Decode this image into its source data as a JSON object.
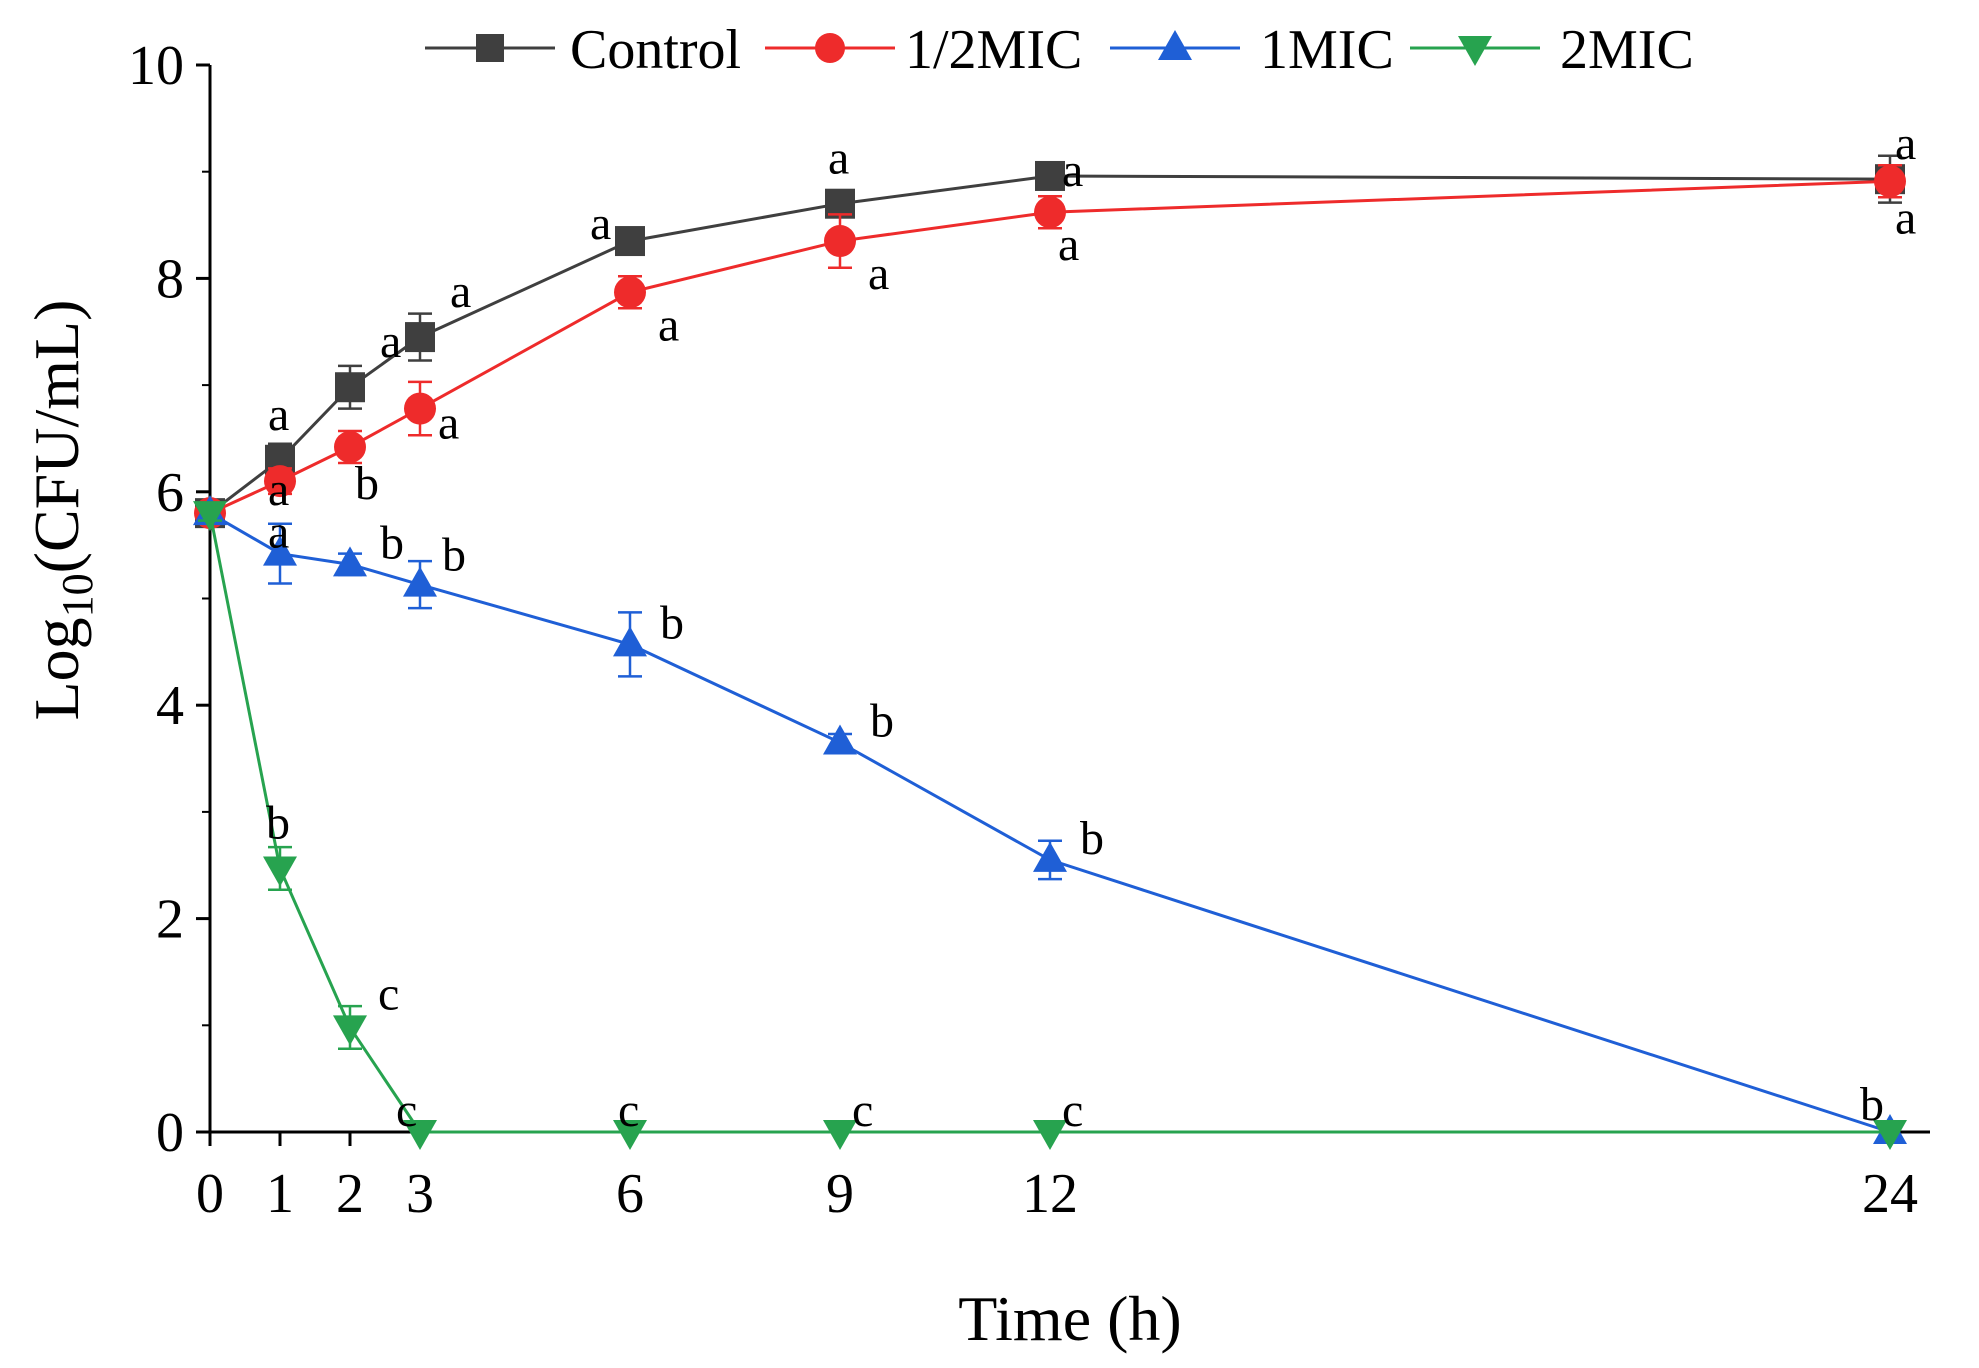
{
  "chart_data": {
    "type": "line",
    "xlabel": "Time (h)",
    "ylabel": {
      "base": "Log",
      "subscript": "10",
      "rest": "(CFU/mL)"
    },
    "xlim": [
      0,
      24
    ],
    "ylim": [
      0,
      10
    ],
    "x_ticks": [
      0,
      1,
      2,
      3,
      6,
      9,
      12,
      24
    ],
    "y_ticks": [
      0,
      2,
      4,
      6,
      8,
      10
    ],
    "legend_position": "top",
    "series": [
      {
        "name": "Control",
        "color": "#3f3f3f",
        "marker": "square",
        "x": [
          0,
          1,
          2,
          3,
          6,
          9,
          12,
          24
        ],
        "values": [
          5.8,
          6.3,
          6.98,
          7.45,
          8.35,
          8.7,
          8.96,
          8.93
        ],
        "errors": [
          0.07,
          0.15,
          0.2,
          0.22,
          0.1,
          0.12,
          0.12,
          0.22
        ],
        "labels": [
          "",
          "a",
          "a",
          "a",
          "a",
          "a",
          "a",
          "a"
        ]
      },
      {
        "name": "1/2MIC",
        "color": "#ee2b2b",
        "marker": "circle",
        "x": [
          0,
          1,
          2,
          3,
          6,
          9,
          12,
          24
        ],
        "values": [
          5.8,
          6.1,
          6.42,
          6.78,
          7.87,
          8.35,
          8.62,
          8.91
        ],
        "errors": [
          0.07,
          0.12,
          0.15,
          0.25,
          0.15,
          0.25,
          0.15,
          0.15
        ],
        "labels": [
          "",
          "a",
          "b",
          "a",
          "a",
          "a",
          "a",
          "a"
        ]
      },
      {
        "name": "1MIC",
        "color": "#1f5fd6",
        "marker": "triangle-up",
        "x": [
          0,
          1,
          2,
          3,
          6,
          9,
          12,
          24
        ],
        "values": [
          5.8,
          5.42,
          5.32,
          5.13,
          4.57,
          3.65,
          2.55,
          0
        ],
        "errors": [
          0.07,
          0.28,
          0.1,
          0.22,
          0.3,
          0.08,
          0.18,
          0
        ],
        "labels": [
          "",
          "a",
          "b",
          "b",
          "b",
          "b",
          "b",
          "b"
        ]
      },
      {
        "name": "2MIC",
        "color": "#27a34f",
        "marker": "triangle-down",
        "x": [
          0,
          1,
          2,
          3,
          6,
          9,
          12,
          24
        ],
        "values": [
          5.8,
          2.47,
          0.98,
          0,
          0,
          0,
          0,
          0
        ],
        "errors": [
          0.07,
          0.2,
          0.2,
          0,
          0,
          0,
          0,
          0
        ],
        "labels": [
          "",
          "b",
          "c",
          "c",
          "c",
          "c",
          "c",
          ""
        ]
      }
    ]
  }
}
